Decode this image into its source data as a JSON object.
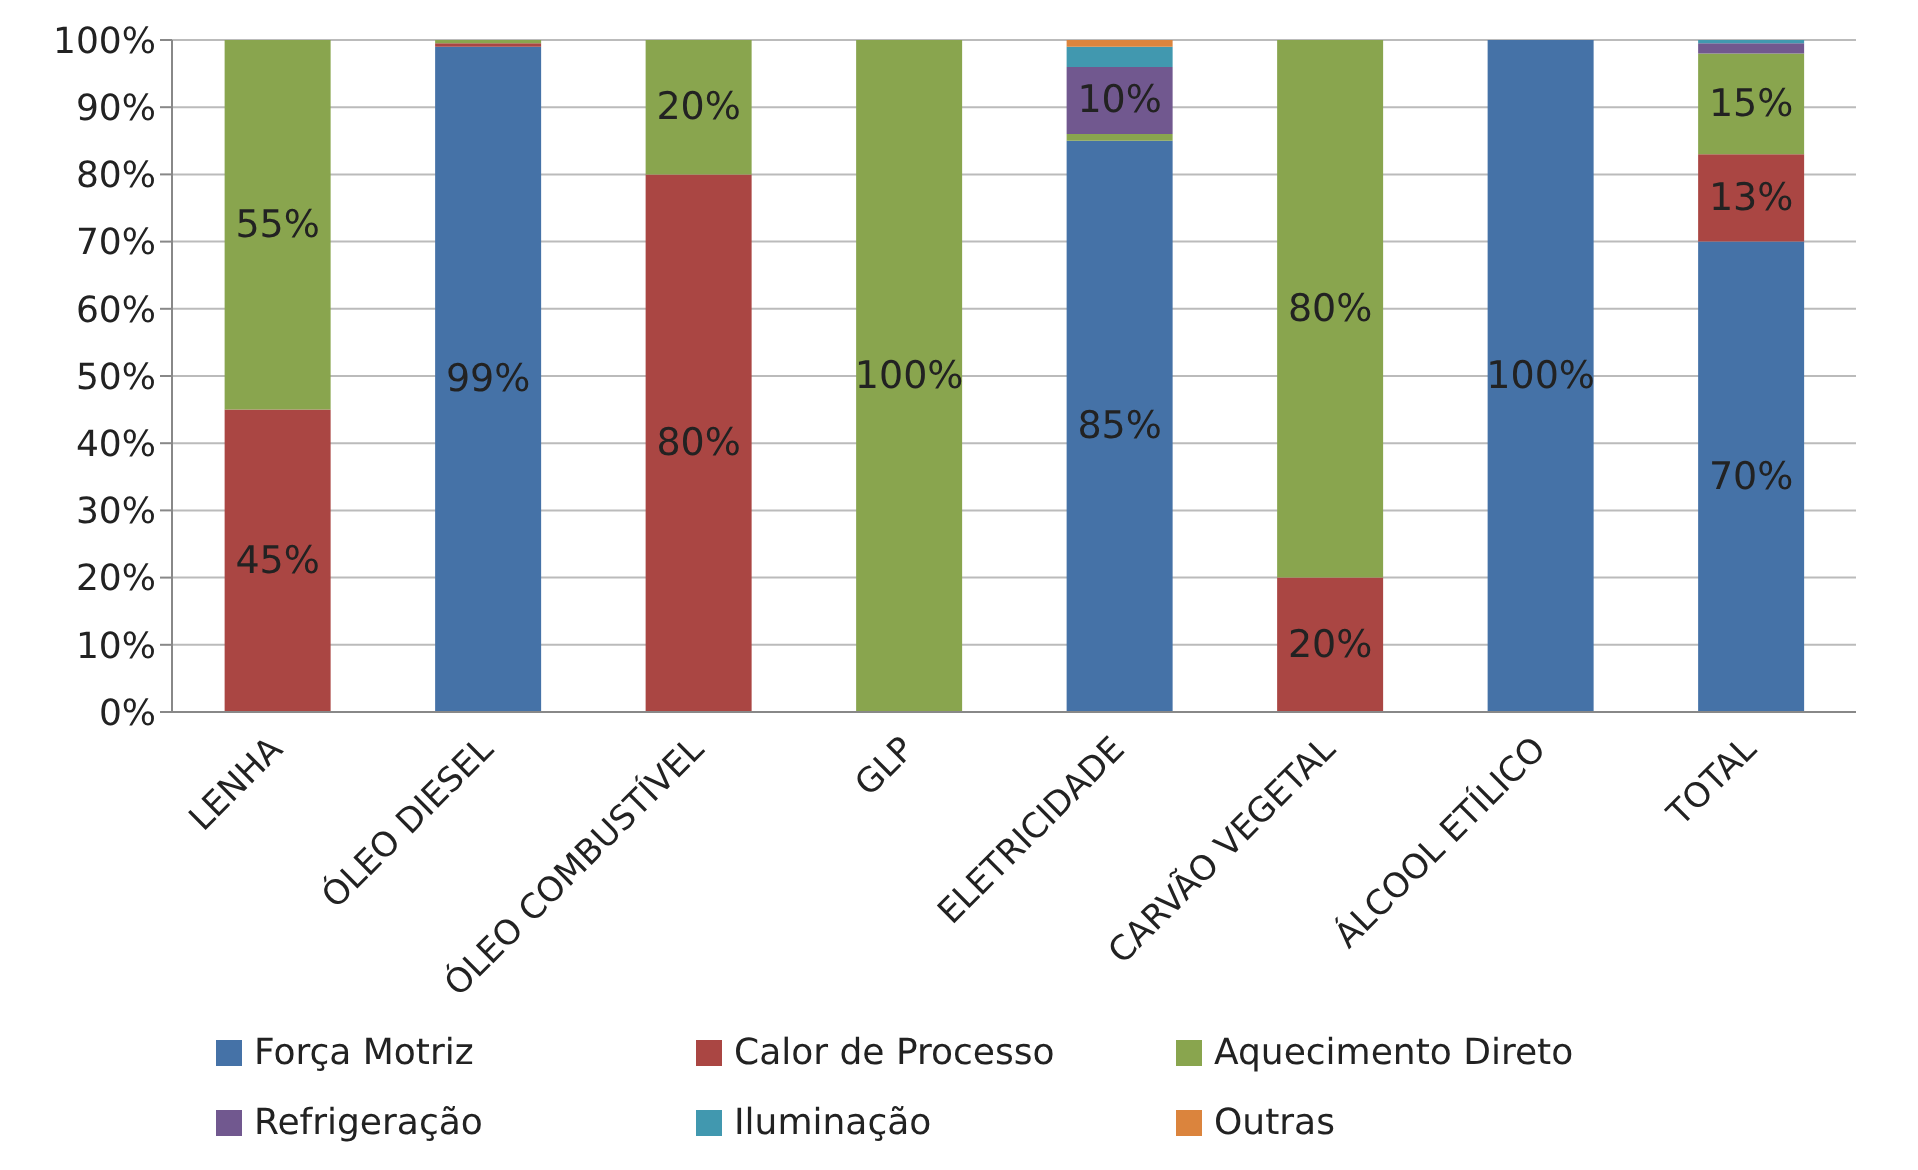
{
  "chart_data": {
    "type": "bar",
    "stacked": true,
    "categories": [
      "LENHA",
      "ÓLEO DIESEL",
      "ÓLEO COMBUSTÍVEL",
      "GLP",
      "ELETRICIDADE",
      "CARVÃO VEGETAL",
      "ÁLCOOL ETÍLICO",
      "TOTAL"
    ],
    "series": [
      {
        "name": "Força Motriz",
        "color": "#4572a7",
        "values": [
          0,
          99,
          0,
          0,
          85,
          0,
          100,
          70
        ],
        "value_labels": [
          null,
          "99%",
          null,
          null,
          "85%",
          null,
          "100%",
          "70%"
        ]
      },
      {
        "name": "Calor de Processo",
        "color": "#aa4643",
        "values": [
          45,
          0.5,
          80,
          0,
          0,
          20,
          0,
          13
        ],
        "value_labels": [
          "45%",
          null,
          "80%",
          null,
          null,
          "20%",
          null,
          "13%"
        ]
      },
      {
        "name": "Aquecimento Direto",
        "color": "#89a54e",
        "values": [
          55,
          0.5,
          20,
          100,
          1,
          80,
          0,
          15
        ],
        "value_labels": [
          "55%",
          null,
          "20%",
          "100%",
          null,
          "80%",
          null,
          "15%"
        ]
      },
      {
        "name": "Refrigeração",
        "color": "#71588f",
        "values": [
          0,
          0,
          0,
          0,
          10,
          0,
          0,
          1.5
        ],
        "value_labels": [
          null,
          null,
          null,
          null,
          "10%",
          null,
          null,
          null
        ]
      },
      {
        "name": "Iluminação",
        "color": "#4198af",
        "values": [
          0,
          0,
          0,
          0,
          3,
          0,
          0,
          0.5
        ]
      },
      {
        "name": "Outras",
        "color": "#db843d",
        "values": [
          0,
          0,
          0,
          0,
          1,
          0,
          0,
          0
        ]
      }
    ],
    "ylim": [
      0,
      100
    ],
    "yticks": [
      {
        "value": 0,
        "label": "0%"
      },
      {
        "value": 10,
        "label": "10%"
      },
      {
        "value": 20,
        "label": "20%"
      },
      {
        "value": 30,
        "label": "30%"
      },
      {
        "value": 40,
        "label": "40%"
      },
      {
        "value": 50,
        "label": "50%"
      },
      {
        "value": 60,
        "label": "60%"
      },
      {
        "value": 70,
        "label": "70%"
      },
      {
        "value": 80,
        "label": "80%"
      },
      {
        "value": 90,
        "label": "90%"
      },
      {
        "value": 100,
        "label": "100%"
      }
    ],
    "grid": "y",
    "legend": "bottom"
  }
}
